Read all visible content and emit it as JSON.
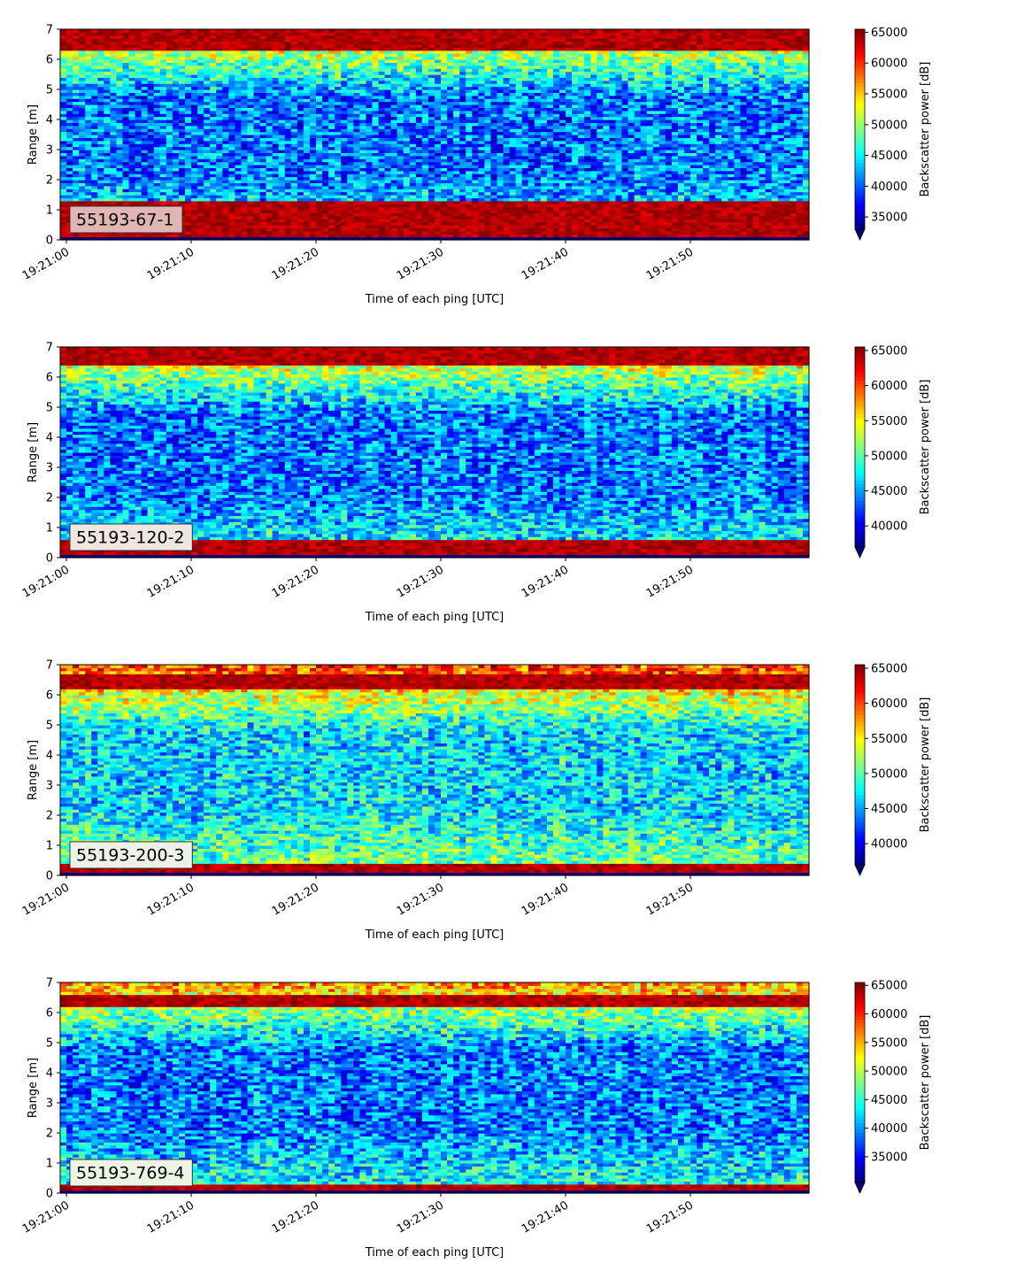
{
  "chart_data": [
    {
      "type": "heatmap",
      "label": "55193-67-1",
      "xlabel": "Time of each ping [UTC]",
      "ylabel": "Range [m]",
      "x_ticks": [
        "19:21:00",
        "19:21:10",
        "19:21:20",
        "19:21:30",
        "19:21:40",
        "19:21:50"
      ],
      "x_range_seconds": [
        0,
        60
      ],
      "y_ticks": [
        0,
        1,
        2,
        3,
        4,
        5,
        6,
        7
      ],
      "ylim": [
        0,
        7
      ],
      "colorbar": {
        "label": "Backscatter power [dB]",
        "min": 33000,
        "max": 65500,
        "ticks": [
          35000,
          40000,
          45000,
          50000,
          55000,
          60000,
          65000
        ],
        "extend": "min"
      },
      "colormap": "jet",
      "label_box_color": "#e2b5b5",
      "features": {
        "near_band_m": [
          0.1,
          1.3
        ],
        "surface_band_m": [
          6.3,
          7.0
        ],
        "background": "blue"
      }
    },
    {
      "type": "heatmap",
      "label": "55193-120-2",
      "xlabel": "Time of each ping [UTC]",
      "ylabel": "Range [m]",
      "x_ticks": [
        "19:21:00",
        "19:21:10",
        "19:21:20",
        "19:21:30",
        "19:21:40",
        "19:21:50"
      ],
      "x_range_seconds": [
        0,
        60
      ],
      "y_ticks": [
        0,
        1,
        2,
        3,
        4,
        5,
        6,
        7
      ],
      "ylim": [
        0,
        7
      ],
      "colorbar": {
        "label": "Backscatter power [dB]",
        "min": 37000,
        "max": 65500,
        "ticks": [
          40000,
          45000,
          50000,
          55000,
          60000,
          65000
        ],
        "extend": "min"
      },
      "colormap": "jet",
      "label_box_color": "#eee6e0",
      "features": {
        "near_band_m": [
          0.1,
          0.55
        ],
        "surface_band_m": [
          6.4,
          7.0
        ],
        "background": "blue"
      }
    },
    {
      "type": "heatmap",
      "label": "55193-200-3",
      "xlabel": "Time of each ping [UTC]",
      "ylabel": "Range [m]",
      "x_ticks": [
        "19:21:00",
        "19:21:10",
        "19:21:20",
        "19:21:30",
        "19:21:40",
        "19:21:50"
      ],
      "x_range_seconds": [
        0,
        60
      ],
      "y_ticks": [
        0,
        1,
        2,
        3,
        4,
        5,
        6,
        7
      ],
      "ylim": [
        0,
        7
      ],
      "colorbar": {
        "label": "Backscatter power [dB]",
        "min": 37000,
        "max": 65500,
        "ticks": [
          40000,
          45000,
          50000,
          55000,
          60000,
          65000
        ],
        "extend": "min"
      },
      "colormap": "jet",
      "label_box_color": "#eef2e6",
      "features": {
        "near_band_m": [
          0.1,
          0.4
        ],
        "surface_band_m": [
          6.25,
          6.7
        ],
        "background": "cyan"
      }
    },
    {
      "type": "heatmap",
      "label": "55193-769-4",
      "xlabel": "Time of each ping [UTC]",
      "ylabel": "Range [m]",
      "x_ticks": [
        "19:21:00",
        "19:21:10",
        "19:21:20",
        "19:21:30",
        "19:21:40",
        "19:21:50"
      ],
      "x_range_seconds": [
        0,
        60
      ],
      "y_ticks": [
        0,
        1,
        2,
        3,
        4,
        5,
        6,
        7
      ],
      "ylim": [
        0,
        7
      ],
      "colorbar": {
        "label": "Backscatter power [dB]",
        "min": 30500,
        "max": 65500,
        "ticks": [
          35000,
          40000,
          45000,
          50000,
          55000,
          60000,
          65000
        ],
        "extend": "min"
      },
      "colormap": "jet",
      "label_box_color": "#eef4e4",
      "features": {
        "near_band_m": [
          0.1,
          0.25
        ],
        "surface_band_m": [
          6.2,
          6.55
        ],
        "background": "blue"
      }
    }
  ]
}
